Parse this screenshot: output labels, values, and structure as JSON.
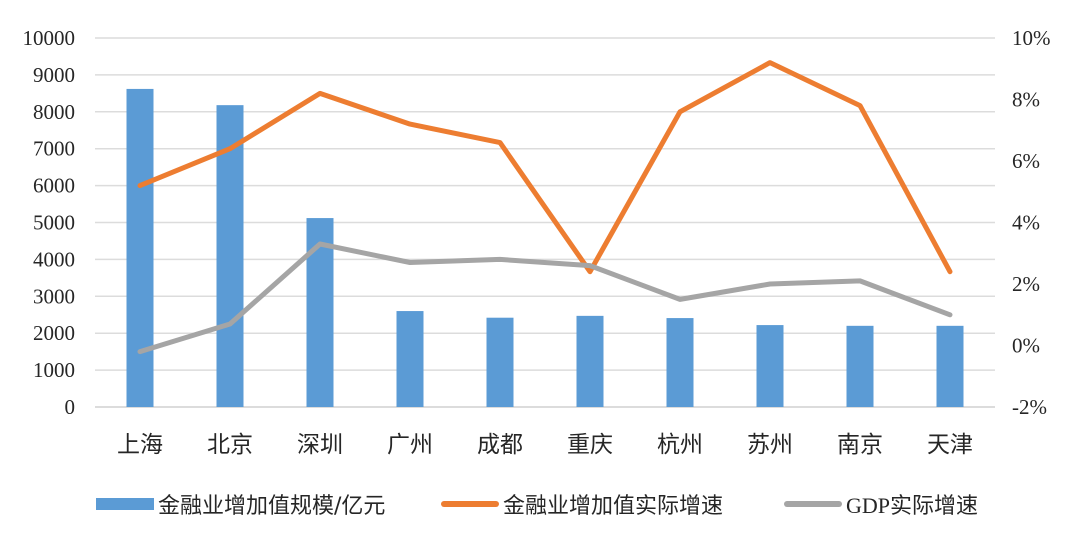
{
  "chart_data": {
    "type": "bar+line",
    "title": "",
    "categories": [
      "上海",
      "北京",
      "深圳",
      "广州",
      "成都",
      "重庆",
      "杭州",
      "苏州",
      "南京",
      "天津"
    ],
    "series": [
      {
        "name": "金融业增加值规模/亿元",
        "type": "bar",
        "axis": "left",
        "color": "#5B9BD5",
        "values": [
          8620,
          8180,
          5120,
          2600,
          2420,
          2470,
          2410,
          2220,
          2200,
          2200
        ]
      },
      {
        "name": "金融业增加值实际增速",
        "type": "line",
        "axis": "right",
        "unit": "%",
        "color": "#ED7D31",
        "values": [
          5.2,
          6.4,
          8.2,
          7.2,
          6.6,
          2.4,
          7.6,
          9.2,
          7.8,
          2.4
        ]
      },
      {
        "name": "GDP实际增速",
        "type": "line",
        "axis": "right",
        "unit": "%",
        "color": "#A5A5A5",
        "values": [
          -0.2,
          0.7,
          3.3,
          2.7,
          2.8,
          2.6,
          1.5,
          2.0,
          2.1,
          1.0
        ]
      }
    ],
    "left_axis": {
      "ylim": [
        0,
        10000
      ],
      "ticks": [
        0,
        1000,
        2000,
        3000,
        4000,
        5000,
        6000,
        7000,
        8000,
        9000,
        10000
      ],
      "tick_labels": [
        "0",
        "1000",
        "2000",
        "3000",
        "4000",
        "5000",
        "6000",
        "7000",
        "8000",
        "9000",
        "10000"
      ]
    },
    "right_axis": {
      "ylim": [
        -2,
        10
      ],
      "ticks": [
        -2,
        0,
        2,
        4,
        6,
        8,
        10
      ],
      "tick_labels": [
        "-2%",
        "0%",
        "2%",
        "4%",
        "6%",
        "8%",
        "10%"
      ]
    },
    "xlabel": "",
    "ylabel": "",
    "grid": true,
    "legend_position": "bottom"
  },
  "legend": [
    {
      "label": "金融业增加值规模/亿元",
      "kind": "bar",
      "color": "#5B9BD5"
    },
    {
      "label": "金融业增加值实际增速",
      "kind": "line",
      "color": "#ED7D31"
    },
    {
      "label": "GDP实际增速",
      "kind": "line",
      "color": "#A5A5A5"
    }
  ]
}
